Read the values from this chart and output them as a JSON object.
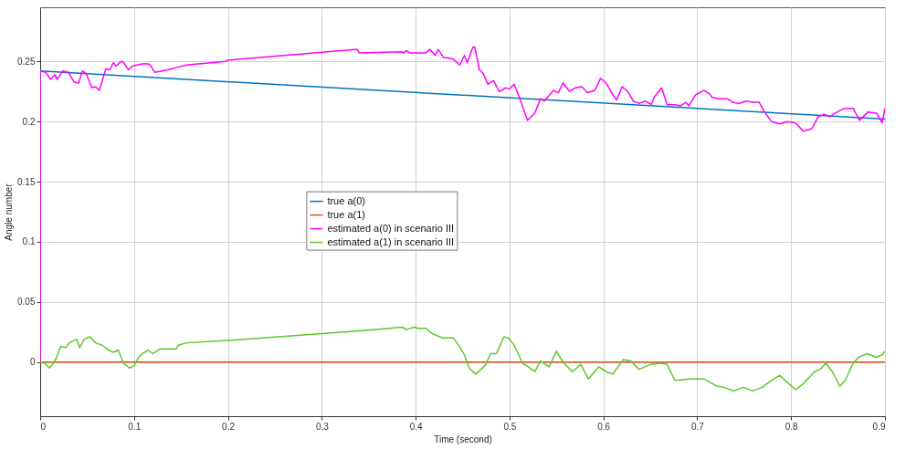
{
  "chart_data": {
    "type": "line",
    "xlabel": "Time (second)",
    "ylabel": "Angle number",
    "xlim": [
      0,
      0.9
    ],
    "ylim": [
      -0.045,
      0.295
    ],
    "xticks": [
      0,
      0.1,
      0.2,
      0.3,
      0.4,
      0.5,
      0.6,
      0.7,
      0.8,
      0.9
    ],
    "yticks": [
      0,
      0.05,
      0.1,
      0.15,
      0.2,
      0.25
    ],
    "grid": true,
    "legend": "center",
    "line_style": "solid",
    "series": [
      {
        "name": "true a(0)",
        "color": "#0072bd",
        "x": [
          0,
          0.9
        ],
        "values": [
          0.242,
          0.202
        ]
      },
      {
        "name": "true a(1)",
        "color": "#d95319",
        "x": [
          0,
          0.9
        ],
        "values": [
          0,
          0
        ]
      },
      {
        "name": "estimated a(0) in scenario III",
        "color": "#ff00ff",
        "x": [
          0,
          0,
          0.006,
          0.011,
          0.016,
          0.018,
          0.024,
          0.03,
          0.036,
          0.041,
          0.045,
          0.049,
          0.055,
          0.059,
          0.063,
          0.07,
          0.074,
          0.078,
          0.081,
          0.086,
          0.089,
          0.094,
          0.098,
          0.103,
          0.109,
          0.115,
          0.118,
          0.122,
          0.136,
          0.145,
          0.156,
          0.198,
          0.2,
          0.338,
          0.34,
          0.385,
          0.387,
          0.39,
          0.394,
          0.411,
          0.415,
          0.421,
          0.424,
          0.43,
          0.433,
          0.44,
          0.447,
          0.452,
          0.455,
          0.461,
          0.463,
          0.468,
          0.472,
          0.477,
          0.483,
          0.489,
          0.496,
          0.5,
          0.505,
          0.511,
          0.519,
          0.527,
          0.533,
          0.537,
          0.547,
          0.552,
          0.557,
          0.564,
          0.57,
          0.577,
          0.583,
          0.591,
          0.597,
          0.603,
          0.608,
          0.614,
          0.62,
          0.626,
          0.632,
          0.638,
          0.645,
          0.651,
          0.654,
          0.662,
          0.668,
          0.676,
          0.682,
          0.688,
          0.691,
          0.698,
          0.707,
          0.713,
          0.716,
          0.723,
          0.732,
          0.738,
          0.744,
          0.752,
          0.76,
          0.766,
          0.771,
          0.779,
          0.788,
          0.796,
          0.804,
          0.807,
          0.813,
          0.822,
          0.829,
          0.835,
          0.841,
          0.847,
          0.857,
          0.866,
          0.873,
          0.882,
          0.891,
          0.897,
          0.9
        ],
        "values": [
          0,
          0.242,
          0.241,
          0.235,
          0.239,
          0.235,
          0.242,
          0.241,
          0.233,
          0.232,
          0.242,
          0.24,
          0.228,
          0.229,
          0.226,
          0.244,
          0.243,
          0.249,
          0.246,
          0.25,
          0.249,
          0.243,
          0.246,
          0.247,
          0.248,
          0.248,
          0.246,
          0.241,
          0.243,
          0.245,
          0.247,
          0.25,
          0.251,
          0.26,
          0.257,
          0.258,
          0.257,
          0.259,
          0.257,
          0.257,
          0.26,
          0.255,
          0.26,
          0.253,
          0.253,
          0.252,
          0.247,
          0.255,
          0.249,
          0.262,
          0.262,
          0.243,
          0.24,
          0.231,
          0.234,
          0.225,
          0.228,
          0.227,
          0.231,
          0.219,
          0.201,
          0.207,
          0.219,
          0.217,
          0.226,
          0.224,
          0.232,
          0.225,
          0.228,
          0.229,
          0.224,
          0.226,
          0.236,
          0.232,
          0.225,
          0.218,
          0.229,
          0.225,
          0.217,
          0.215,
          0.217,
          0.214,
          0.22,
          0.228,
          0.214,
          0.214,
          0.213,
          0.216,
          0.213,
          0.222,
          0.226,
          0.223,
          0.22,
          0.219,
          0.219,
          0.216,
          0.215,
          0.217,
          0.216,
          0.216,
          0.209,
          0.2,
          0.198,
          0.2,
          0.199,
          0.197,
          0.192,
          0.194,
          0.204,
          0.206,
          0.204,
          0.207,
          0.211,
          0.211,
          0.201,
          0.208,
          0.207,
          0.199,
          0.211
        ]
      },
      {
        "name": "estimated a(1) in scenario III",
        "color": "#5cc72a",
        "x": [
          0,
          0.005,
          0.01,
          0.013,
          0.017,
          0.022,
          0.027,
          0.031,
          0.039,
          0.042,
          0.047,
          0.053,
          0.059,
          0.066,
          0.073,
          0.078,
          0.083,
          0.089,
          0.095,
          0.1,
          0.105,
          0.109,
          0.115,
          0.12,
          0.128,
          0.145,
          0.147,
          0.156,
          0.2,
          0.34,
          0.386,
          0.39,
          0.399,
          0.402,
          0.411,
          0.417,
          0.423,
          0.429,
          0.433,
          0.44,
          0.446,
          0.452,
          0.457,
          0.464,
          0.474,
          0.48,
          0.486,
          0.494,
          0.499,
          0.505,
          0.514,
          0.52,
          0.527,
          0.533,
          0.542,
          0.55,
          0.558,
          0.567,
          0.576,
          0.584,
          0.595,
          0.603,
          0.61,
          0.621,
          0.629,
          0.638,
          0.65,
          0.662,
          0.668,
          0.676,
          0.682,
          0.691,
          0.707,
          0.714,
          0.721,
          0.728,
          0.739,
          0.749,
          0.759,
          0.769,
          0.776,
          0.788,
          0.796,
          0.805,
          0.813,
          0.825,
          0.831,
          0.837,
          0.844,
          0.852,
          0.858,
          0.866,
          0.872,
          0.881,
          0.891,
          0.897,
          0.9
        ],
        "values": [
          0,
          -0.001,
          -0.005,
          -0.002,
          0.003,
          0.013,
          0.012,
          0.016,
          0.019,
          0.012,
          0.019,
          0.021,
          0.016,
          0.014,
          0.01,
          0.008,
          0.01,
          -0.001,
          -0.005,
          -0.003,
          0.004,
          0.007,
          0.01,
          0.007,
          0.011,
          0.011,
          0.014,
          0.016,
          0.018,
          0.026,
          0.029,
          0.027,
          0.029,
          0.028,
          0.028,
          0.024,
          0.022,
          0.02,
          0.02,
          0.02,
          0.014,
          0.006,
          -0.005,
          -0.01,
          -0.003,
          0.007,
          0.007,
          0.021,
          0.02,
          0.014,
          -0.001,
          -0.004,
          -0.008,
          0.001,
          -0.004,
          0.009,
          -0.001,
          -0.008,
          -0.002,
          -0.014,
          -0.004,
          -0.008,
          -0.01,
          0.002,
          0.001,
          -0.006,
          -0.002,
          -0.001,
          -0.002,
          -0.015,
          -0.015,
          -0.014,
          -0.014,
          -0.017,
          -0.02,
          -0.021,
          -0.024,
          -0.021,
          -0.024,
          -0.021,
          -0.017,
          -0.011,
          -0.017,
          -0.023,
          -0.018,
          -0.008,
          -0.006,
          -0.001,
          -0.008,
          -0.02,
          -0.015,
          -0.001,
          0.004,
          0.007,
          0.004,
          0.006,
          0.009
        ]
      }
    ]
  }
}
